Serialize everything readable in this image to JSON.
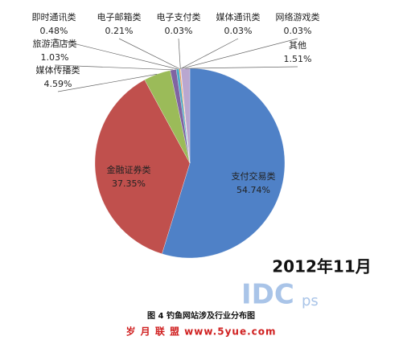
{
  "chart_data": {
    "type": "pie",
    "categories": [
      "支付交易类",
      "金融证券类",
      "媒体传播类",
      "旅游酒店类",
      "即时通讯类",
      "电子邮箱类",
      "电子支付类",
      "媒体通讯类",
      "网络游戏类",
      "其他"
    ],
    "values": [
      54.74,
      37.35,
      4.59,
      1.03,
      0.48,
      0.21,
      0.03,
      0.03,
      0.03,
      1.51
    ],
    "value_labels": [
      "54.74%",
      "37.35%",
      "4.59%",
      "1.03%",
      "0.48%",
      "0.21%",
      "0.03%",
      "0.03%",
      "0.03%",
      "1.51%"
    ],
    "colors": [
      "#4f81c7",
      "#c0504d",
      "#9bbb59",
      "#8064a2",
      "#4bacc6",
      "#f79646",
      "#2c4d75",
      "#772c2a",
      "#5f7530",
      "#b9a7d0"
    ],
    "annotation": "2012年11月",
    "watermark": [
      "IDC",
      "ps"
    ],
    "caption": "图 4 钓鱼网站涉及行业分布图",
    "source": "岁 月 联 盟 www.5yue.com"
  }
}
